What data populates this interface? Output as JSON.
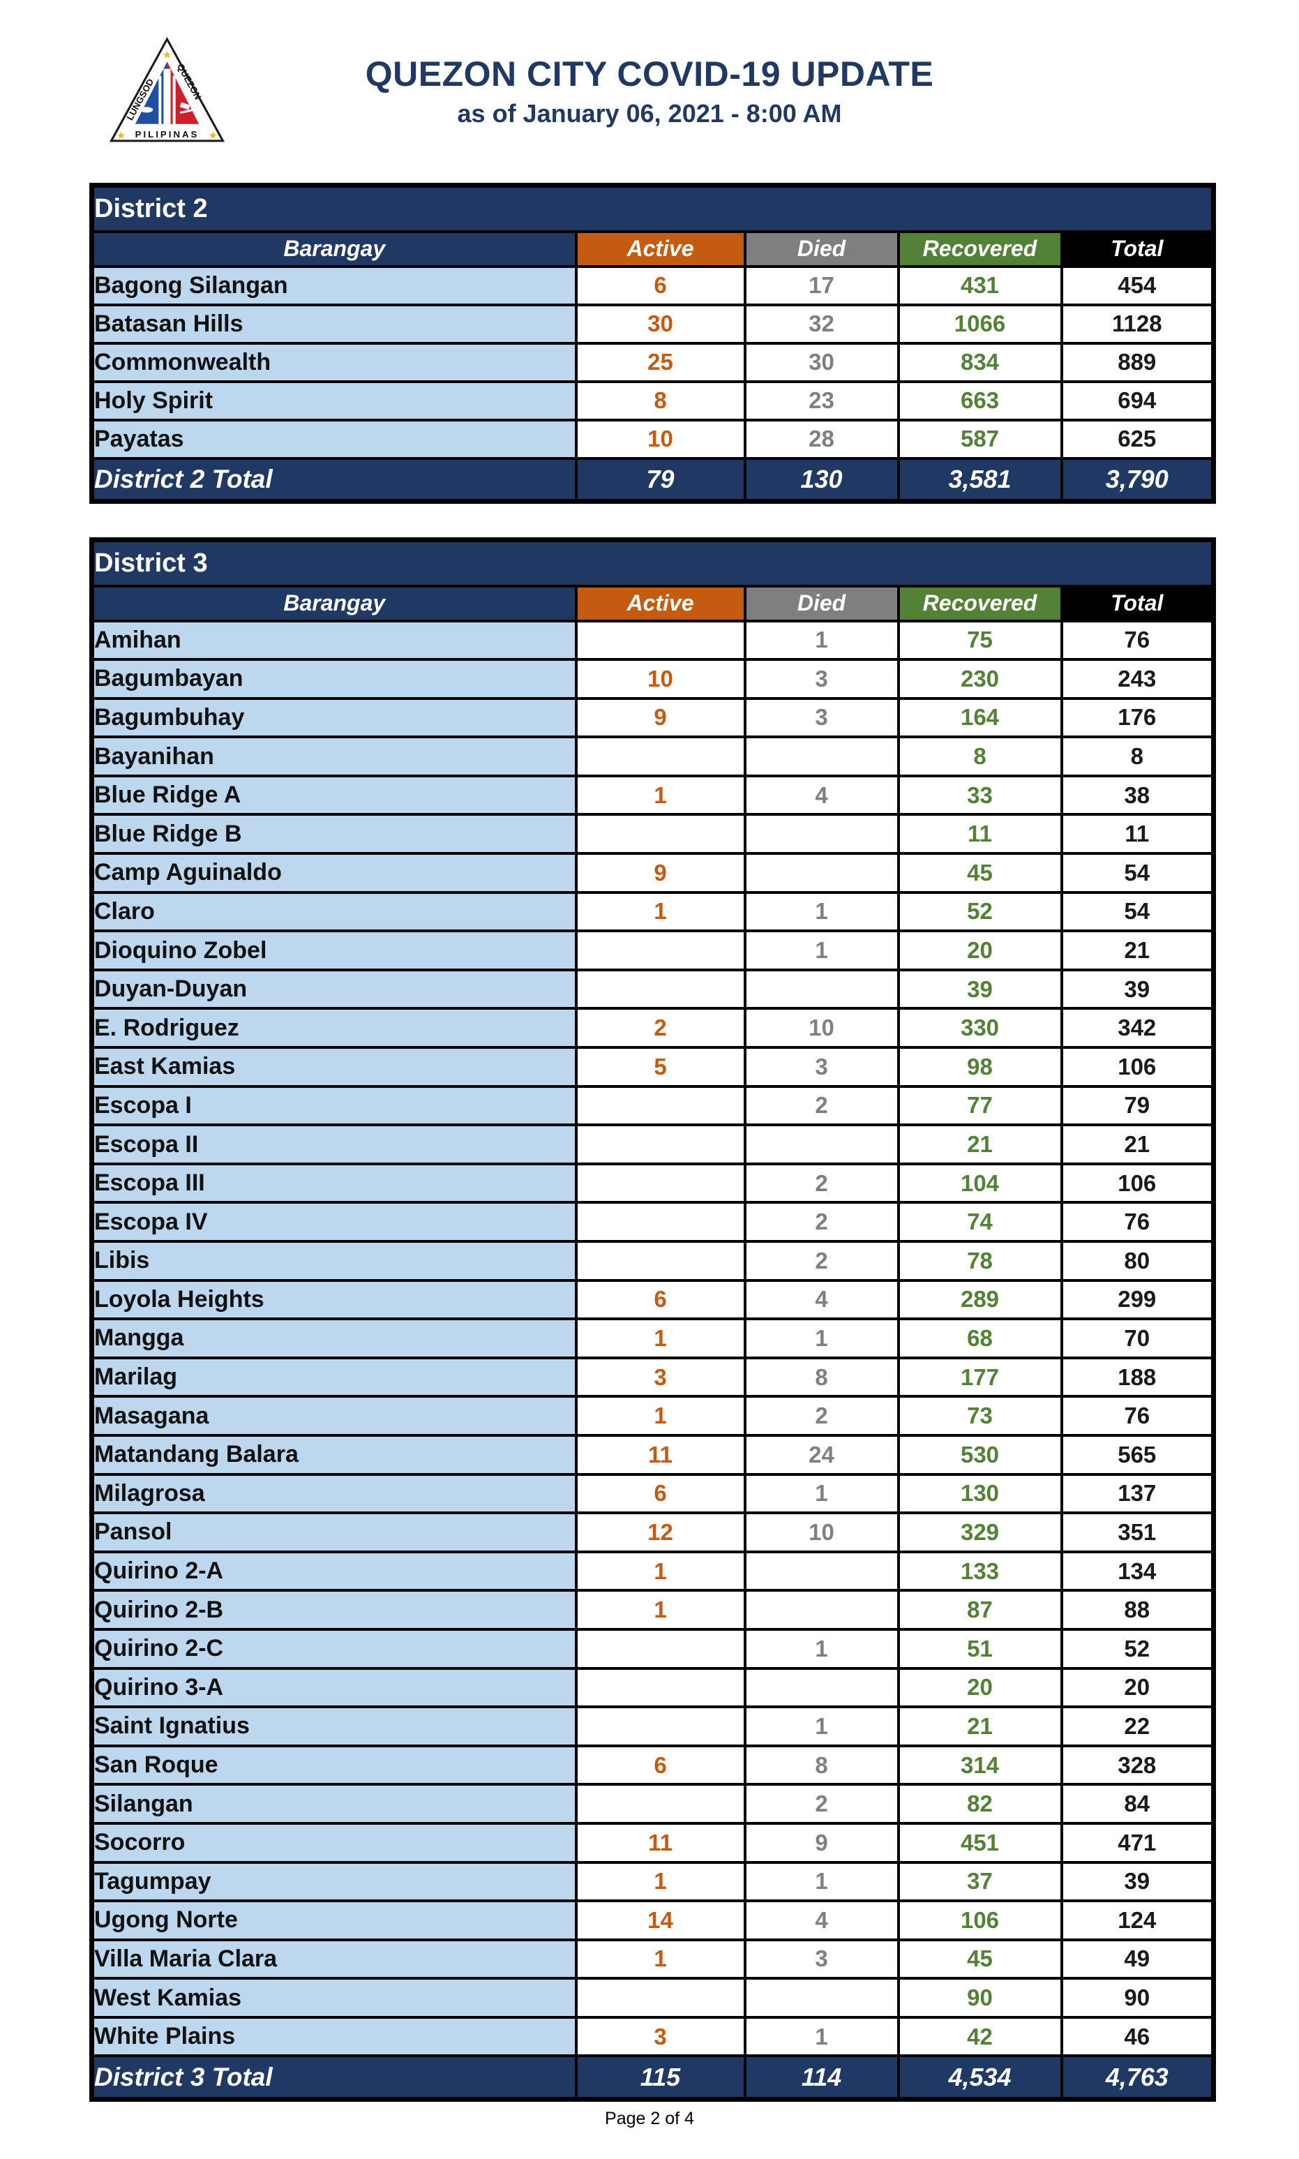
{
  "page": {
    "title": "QUEZON CITY COVID-19 UPDATE",
    "subtitle": "as of January 06, 2021 - 8:00 AM",
    "footer": "Page 2 of 4"
  },
  "logo": {
    "text_left": "LUNGSOD",
    "text_right": "QUEZON",
    "text_bottom": "PILIPINAS"
  },
  "columns": [
    "Barangay",
    "Active",
    "Died",
    "Recovered",
    "Total"
  ],
  "colors": {
    "navy": "#1F3864",
    "light_blue": "#BDD7EE",
    "active_orange": "#C55A11",
    "died_gray": "#7F7F7F",
    "recovered_green": "#538135",
    "total_black": "#000000",
    "title_navy": "#1F3864"
  },
  "districts": [
    {
      "name": "District 2",
      "total_label": "District 2 Total",
      "rows": [
        {
          "barangay": "Bagong Silangan",
          "active": "6",
          "died": "17",
          "recovered": "431",
          "total": "454"
        },
        {
          "barangay": "Batasan Hills",
          "active": "30",
          "died": "32",
          "recovered": "1066",
          "total": "1128"
        },
        {
          "barangay": "Commonwealth",
          "active": "25",
          "died": "30",
          "recovered": "834",
          "total": "889"
        },
        {
          "barangay": "Holy Spirit",
          "active": "8",
          "died": "23",
          "recovered": "663",
          "total": "694"
        },
        {
          "barangay": "Payatas",
          "active": "10",
          "died": "28",
          "recovered": "587",
          "total": "625"
        }
      ],
      "totals": {
        "active": "79",
        "died": "130",
        "recovered": "3,581",
        "total": "3,790"
      }
    },
    {
      "name": "District 3",
      "total_label": "District 3 Total",
      "rows": [
        {
          "barangay": "Amihan",
          "active": "",
          "died": "1",
          "recovered": "75",
          "total": "76"
        },
        {
          "barangay": "Bagumbayan",
          "active": "10",
          "died": "3",
          "recovered": "230",
          "total": "243"
        },
        {
          "barangay": "Bagumbuhay",
          "active": "9",
          "died": "3",
          "recovered": "164",
          "total": "176"
        },
        {
          "barangay": "Bayanihan",
          "active": "",
          "died": "",
          "recovered": "8",
          "total": "8"
        },
        {
          "barangay": "Blue Ridge A",
          "active": "1",
          "died": "4",
          "recovered": "33",
          "total": "38"
        },
        {
          "barangay": "Blue Ridge B",
          "active": "",
          "died": "",
          "recovered": "11",
          "total": "11"
        },
        {
          "barangay": "Camp Aguinaldo",
          "active": "9",
          "died": "",
          "recovered": "45",
          "total": "54"
        },
        {
          "barangay": "Claro",
          "active": "1",
          "died": "1",
          "recovered": "52",
          "total": "54"
        },
        {
          "barangay": "Dioquino Zobel",
          "active": "",
          "died": "1",
          "recovered": "20",
          "total": "21"
        },
        {
          "barangay": "Duyan-Duyan",
          "active": "",
          "died": "",
          "recovered": "39",
          "total": "39"
        },
        {
          "barangay": "E. Rodriguez",
          "active": "2",
          "died": "10",
          "recovered": "330",
          "total": "342"
        },
        {
          "barangay": "East Kamias",
          "active": "5",
          "died": "3",
          "recovered": "98",
          "total": "106"
        },
        {
          "barangay": "Escopa I",
          "active": "",
          "died": "2",
          "recovered": "77",
          "total": "79"
        },
        {
          "barangay": "Escopa II",
          "active": "",
          "died": "",
          "recovered": "21",
          "total": "21"
        },
        {
          "barangay": "Escopa III",
          "active": "",
          "died": "2",
          "recovered": "104",
          "total": "106"
        },
        {
          "barangay": "Escopa IV",
          "active": "",
          "died": "2",
          "recovered": "74",
          "total": "76"
        },
        {
          "barangay": "Libis",
          "active": "",
          "died": "2",
          "recovered": "78",
          "total": "80"
        },
        {
          "barangay": "Loyola Heights",
          "active": "6",
          "died": "4",
          "recovered": "289",
          "total": "299"
        },
        {
          "barangay": "Mangga",
          "active": "1",
          "died": "1",
          "recovered": "68",
          "total": "70"
        },
        {
          "barangay": "Marilag",
          "active": "3",
          "died": "8",
          "recovered": "177",
          "total": "188"
        },
        {
          "barangay": "Masagana",
          "active": "1",
          "died": "2",
          "recovered": "73",
          "total": "76"
        },
        {
          "barangay": "Matandang Balara",
          "active": "11",
          "died": "24",
          "recovered": "530",
          "total": "565"
        },
        {
          "barangay": "Milagrosa",
          "active": "6",
          "died": "1",
          "recovered": "130",
          "total": "137"
        },
        {
          "barangay": "Pansol",
          "active": "12",
          "died": "10",
          "recovered": "329",
          "total": "351"
        },
        {
          "barangay": "Quirino 2-A",
          "active": "1",
          "died": "",
          "recovered": "133",
          "total": "134"
        },
        {
          "barangay": "Quirino 2-B",
          "active": "1",
          "died": "",
          "recovered": "87",
          "total": "88"
        },
        {
          "barangay": "Quirino 2-C",
          "active": "",
          "died": "1",
          "recovered": "51",
          "total": "52"
        },
        {
          "barangay": "Quirino 3-A",
          "active": "",
          "died": "",
          "recovered": "20",
          "total": "20"
        },
        {
          "barangay": "Saint Ignatius",
          "active": "",
          "died": "1",
          "recovered": "21",
          "total": "22"
        },
        {
          "barangay": "San Roque",
          "active": "6",
          "died": "8",
          "recovered": "314",
          "total": "328"
        },
        {
          "barangay": "Silangan",
          "active": "",
          "died": "2",
          "recovered": "82",
          "total": "84"
        },
        {
          "barangay": "Socorro",
          "active": "11",
          "died": "9",
          "recovered": "451",
          "total": "471"
        },
        {
          "barangay": "Tagumpay",
          "active": "1",
          "died": "1",
          "recovered": "37",
          "total": "39"
        },
        {
          "barangay": "Ugong Norte",
          "active": "14",
          "died": "4",
          "recovered": "106",
          "total": "124"
        },
        {
          "barangay": "Villa Maria Clara",
          "active": "1",
          "died": "3",
          "recovered": "45",
          "total": "49"
        },
        {
          "barangay": "West Kamias",
          "active": "",
          "died": "",
          "recovered": "90",
          "total": "90"
        },
        {
          "barangay": "White Plains",
          "active": "3",
          "died": "1",
          "recovered": "42",
          "total": "46"
        }
      ],
      "totals": {
        "active": "115",
        "died": "114",
        "recovered": "4,534",
        "total": "4,763"
      }
    }
  ]
}
